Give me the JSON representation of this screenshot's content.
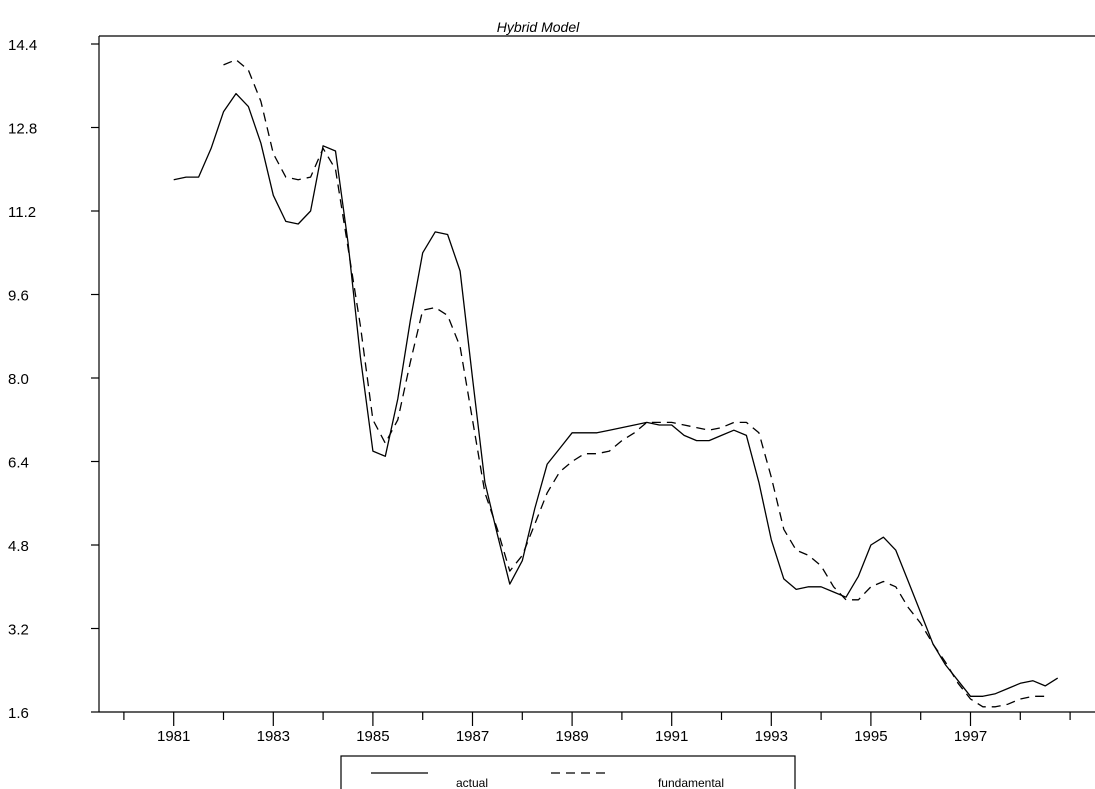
{
  "chart_data": {
    "type": "line",
    "title": "Hybrid Model",
    "xlabel": "",
    "ylabel": "",
    "x_ticks": [
      "1981",
      "1983",
      "1985",
      "1987",
      "1989",
      "1991",
      "1993",
      "1995",
      "1997"
    ],
    "x_tick_values": [
      1981,
      1983,
      1985,
      1987,
      1989,
      1991,
      1993,
      1995,
      1997
    ],
    "xlim": [
      1979.5,
      1999.5
    ],
    "ylim": [
      1.6,
      14.4
    ],
    "y_ticks": [
      "1.6",
      "3.2",
      "4.8",
      "6.4",
      "8.0",
      "9.6",
      "11.2",
      "12.8",
      "14.4"
    ],
    "y_tick_values": [
      1.6,
      3.2,
      4.8,
      6.4,
      8.0,
      9.6,
      11.2,
      12.8,
      14.4
    ],
    "grid": false,
    "legend_position": "bottom",
    "series": [
      {
        "name": "actual",
        "style": "solid",
        "x": [
          1981.0,
          1981.25,
          1981.5,
          1981.75,
          1982.0,
          1982.25,
          1982.5,
          1982.75,
          1983.0,
          1983.25,
          1983.5,
          1983.75,
          1984.0,
          1984.25,
          1984.5,
          1984.75,
          1985.0,
          1985.25,
          1985.5,
          1985.75,
          1986.0,
          1986.25,
          1986.5,
          1986.75,
          1987.0,
          1987.25,
          1987.5,
          1987.75,
          1988.0,
          1988.25,
          1988.5,
          1988.75,
          1989.0,
          1989.25,
          1989.5,
          1989.75,
          1990.0,
          1990.25,
          1990.5,
          1990.75,
          1991.0,
          1991.25,
          1991.5,
          1991.75,
          1992.0,
          1992.25,
          1992.5,
          1992.75,
          1993.0,
          1993.25,
          1993.5,
          1993.75,
          1994.0,
          1994.25,
          1994.5,
          1994.75,
          1995.0,
          1995.25,
          1995.5,
          1995.75,
          1996.0,
          1996.25,
          1996.5,
          1996.75,
          1997.0,
          1997.25,
          1997.5,
          1997.75,
          1998.0,
          1998.25,
          1998.5,
          1998.75
        ],
        "y": [
          11.8,
          11.85,
          11.85,
          12.4,
          13.1,
          13.45,
          13.2,
          12.5,
          11.5,
          11.0,
          10.95,
          11.2,
          12.45,
          12.35,
          10.6,
          8.4,
          6.6,
          6.5,
          7.6,
          9.1,
          10.4,
          10.8,
          10.75,
          10.05,
          8.0,
          6.0,
          5.0,
          4.05,
          4.5,
          5.5,
          6.35,
          6.65,
          6.95,
          6.95,
          6.95,
          7.0,
          7.05,
          7.1,
          7.15,
          7.1,
          7.1,
          6.9,
          6.8,
          6.8,
          6.9,
          7.0,
          6.9,
          6.0,
          4.9,
          4.15,
          3.95,
          4.0,
          4.0,
          3.9,
          3.8,
          4.2,
          4.8,
          4.95,
          4.7,
          4.1,
          3.5,
          2.9,
          2.5,
          2.2,
          1.9,
          1.9,
          1.95,
          2.05,
          2.15,
          2.2,
          2.1,
          2.25
        ]
      },
      {
        "name": "fundamental",
        "style": "dashed",
        "x": [
          1982.0,
          1982.25,
          1982.5,
          1982.75,
          1983.0,
          1983.25,
          1983.5,
          1983.75,
          1984.0,
          1984.25,
          1984.5,
          1984.75,
          1985.0,
          1985.25,
          1985.5,
          1985.75,
          1986.0,
          1986.25,
          1986.5,
          1986.75,
          1987.0,
          1987.25,
          1987.5,
          1987.75,
          1988.0,
          1988.25,
          1988.5,
          1988.75,
          1989.0,
          1989.25,
          1989.5,
          1989.75,
          1990.0,
          1990.25,
          1990.5,
          1990.75,
          1991.0,
          1991.25,
          1991.5,
          1991.75,
          1992.0,
          1992.25,
          1992.5,
          1992.75,
          1993.0,
          1993.25,
          1993.5,
          1993.75,
          1994.0,
          1994.25,
          1994.5,
          1994.75,
          1995.0,
          1995.25,
          1995.5,
          1995.75,
          1996.0,
          1996.25,
          1996.5,
          1996.75,
          1997.0,
          1997.25,
          1997.5,
          1997.75,
          1998.0,
          1998.25,
          1998.5
        ],
        "y": [
          14.0,
          14.1,
          13.9,
          13.3,
          12.3,
          11.85,
          11.8,
          11.85,
          12.4,
          12.0,
          10.5,
          9.0,
          7.2,
          6.75,
          7.2,
          8.3,
          9.3,
          9.35,
          9.2,
          8.6,
          7.2,
          5.8,
          5.1,
          4.3,
          4.6,
          5.2,
          5.8,
          6.2,
          6.4,
          6.55,
          6.55,
          6.6,
          6.8,
          6.95,
          7.15,
          7.15,
          7.15,
          7.1,
          7.05,
          7.0,
          7.05,
          7.15,
          7.15,
          6.95,
          6.1,
          5.1,
          4.7,
          4.6,
          4.4,
          4.0,
          3.75,
          3.75,
          4.0,
          4.1,
          4.0,
          3.6,
          3.3,
          2.9,
          2.55,
          2.15,
          1.85,
          1.7,
          1.7,
          1.75,
          1.85,
          1.9,
          1.9
        ]
      }
    ]
  }
}
